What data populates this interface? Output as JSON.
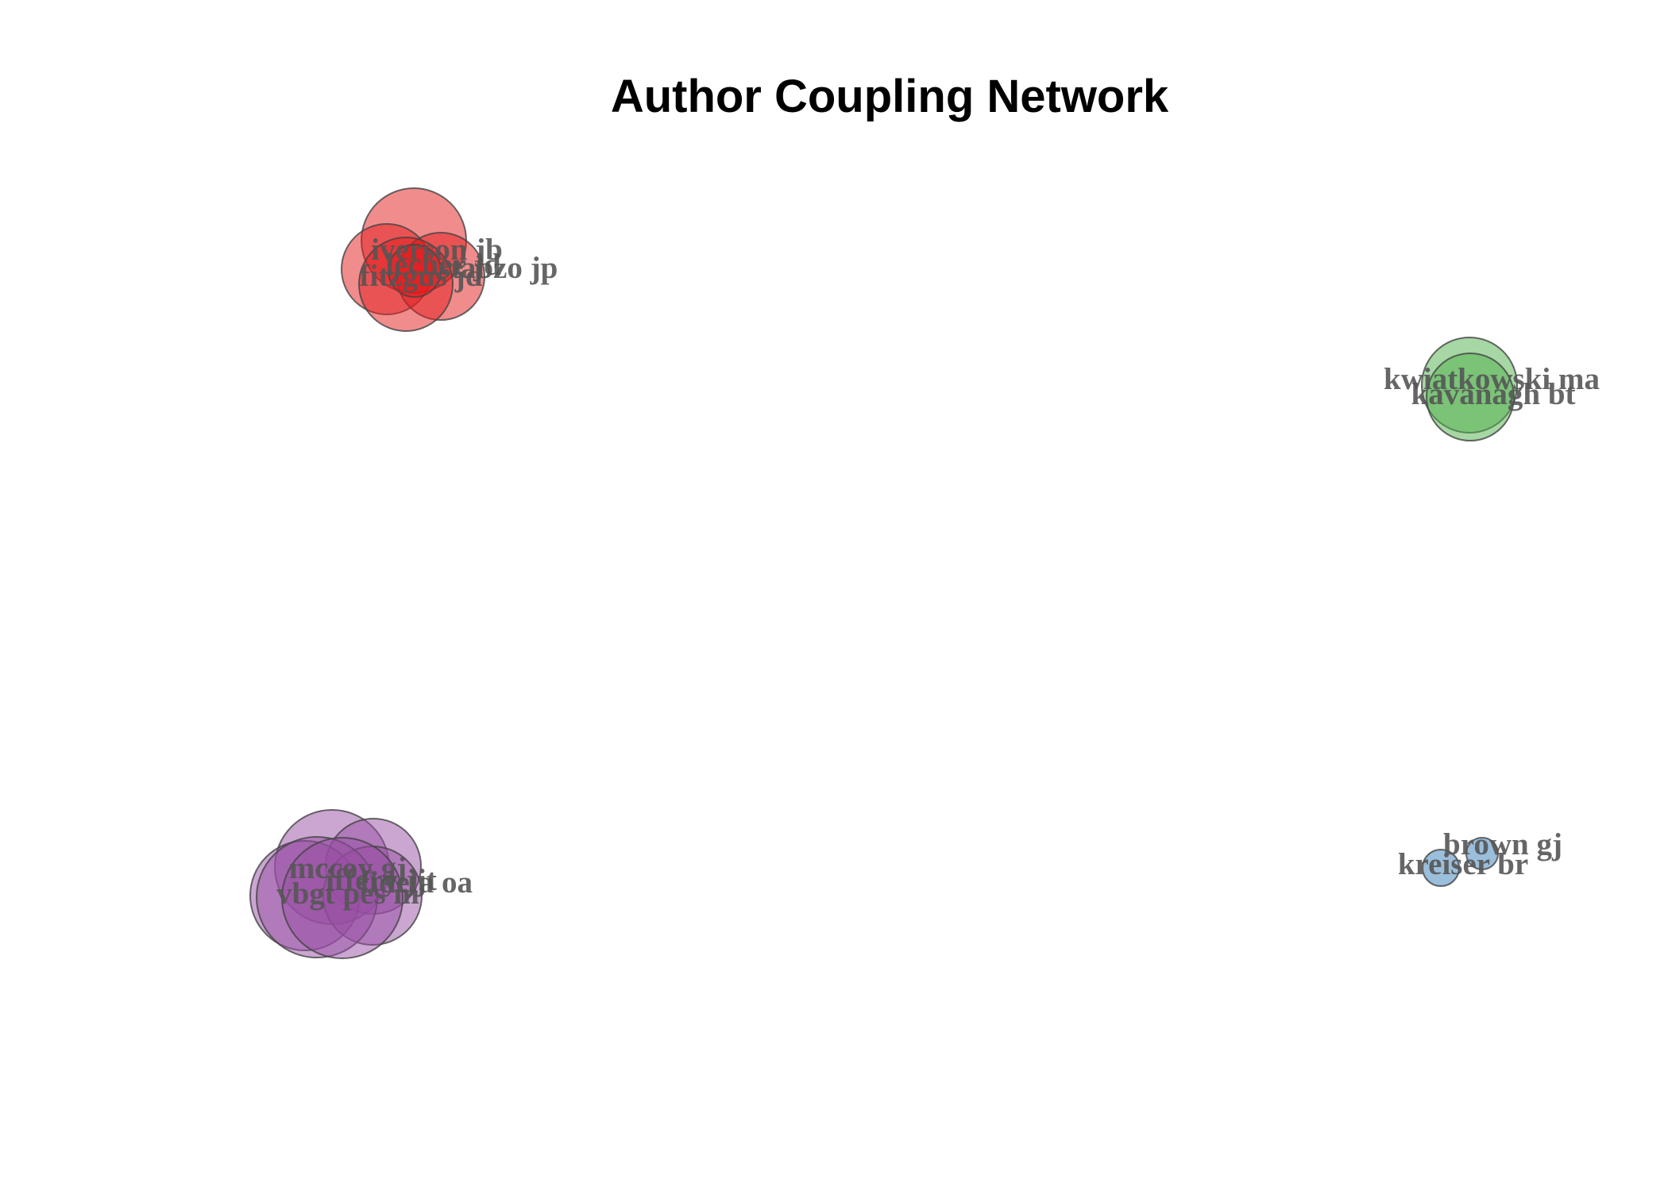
{
  "title": "Author Coupling Network",
  "colors": {
    "cluster_red": "#e41a1c",
    "cluster_green": "#4daf4a",
    "cluster_purple": "#984ea3",
    "cluster_blue": "#377eb8",
    "node_border": "#444444",
    "label": "#555555"
  },
  "clusters": [
    {
      "id": "red",
      "color": "cluster_red",
      "nodes": [
        {
          "label": "iverson jb"
        },
        {
          "label": "lecher jd"
        },
        {
          "label": "stabzo jp"
        },
        {
          "label": "fitzgus jd"
        },
        {
          "label": ""
        }
      ]
    },
    {
      "id": "green",
      "color": "cluster_green",
      "nodes": [
        {
          "label": "kwiatkowski ma"
        },
        {
          "label": "kavanagh bt"
        }
      ]
    },
    {
      "id": "purple",
      "color": "cluster_purple",
      "nodes": [
        {
          "label": "mccoy gj"
        },
        {
          "label": "iffery jjt"
        },
        {
          "label": "fidela oa"
        },
        {
          "label": "vbgt pes m"
        },
        {
          "label": ""
        },
        {
          "label": ""
        }
      ]
    },
    {
      "id": "blue",
      "color": "cluster_blue",
      "nodes": [
        {
          "label": "brown gj"
        },
        {
          "label": "kreiser br"
        }
      ]
    }
  ]
}
